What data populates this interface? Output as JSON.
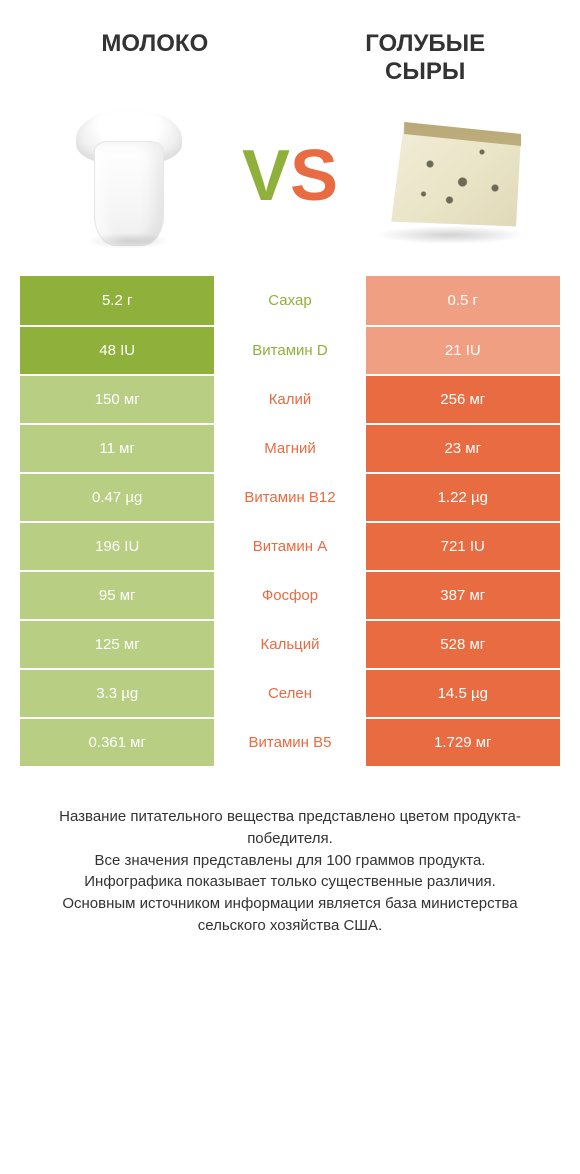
{
  "colors": {
    "left_bg": "#8fb13b",
    "right_bg": "#e86b42",
    "left_pale": "#b8ce82",
    "right_pale": "#f09f83",
    "mid_default": "#e86b42",
    "mid_left_win": "#8fb13b",
    "v_color": "#8fb13b",
    "s_color": "#e86b42",
    "title_color": "#333333",
    "footer_color": "#333333"
  },
  "header": {
    "left_title": "МОЛОКО",
    "right_title": "ГОЛУБЫЕ\nСЫРЫ",
    "title_fontsize": 24
  },
  "vs": {
    "v": "V",
    "s": "S",
    "fontsize": 72
  },
  "rows": [
    {
      "left": "5.2 г",
      "mid": "Сахар",
      "right": "0.5 г",
      "winner": "left"
    },
    {
      "left": "48 IU",
      "mid": "Витамин D",
      "right": "21 IU",
      "winner": "left"
    },
    {
      "left": "150 мг",
      "mid": "Калий",
      "right": "256 мг",
      "winner": "right"
    },
    {
      "left": "11 мг",
      "mid": "Магний",
      "right": "23 мг",
      "winner": "right"
    },
    {
      "left": "0.47 µg",
      "mid": "Витамин B12",
      "right": "1.22 µg",
      "winner": "right"
    },
    {
      "left": "196 IU",
      "mid": "Витамин A",
      "right": "721 IU",
      "winner": "right"
    },
    {
      "left": "95 мг",
      "mid": "Фосфор",
      "right": "387 мг",
      "winner": "right"
    },
    {
      "left": "125 мг",
      "mid": "Кальций",
      "right": "528 мг",
      "winner": "right"
    },
    {
      "left": "3.3 µg",
      "mid": "Селен",
      "right": "14.5 µg",
      "winner": "right"
    },
    {
      "left": "0.361 мг",
      "mid": "Витамин B5",
      "right": "1.729 мг",
      "winner": "right"
    }
  ],
  "footer": {
    "text": "Название питательного вещества представлено цветом продукта-победителя.\nВсе значения представлены для 100 граммов продукта.\nИнфографика показывает только существенные различия.\nОсновным источником информации является база министерства сельского хозяйства США.",
    "fontsize": 15
  }
}
